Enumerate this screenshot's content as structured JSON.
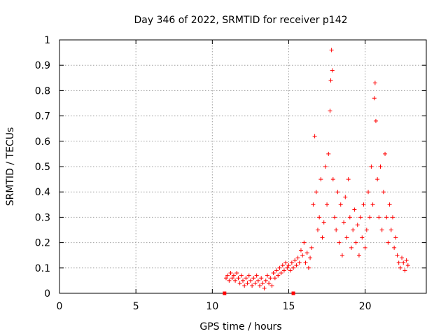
{
  "chart_data": {
    "type": "scatter",
    "title": "Day 346 of 2022, SRMTID for receiver p142",
    "xlabel": "GPS time / hours",
    "ylabel": "SRMTID / TECUs",
    "xlim": [
      0,
      24
    ],
    "ylim": [
      0,
      1
    ],
    "xticks": [
      0,
      5,
      10,
      15,
      20
    ],
    "xtick_labels": [
      "0",
      "5",
      "10",
      "15",
      "20"
    ],
    "yticks": [
      0,
      0.1,
      0.2,
      0.3,
      0.4,
      0.5,
      0.6,
      0.7,
      0.8,
      0.9,
      1
    ],
    "ytick_labels": [
      "0",
      "0.1",
      "0.2",
      "0.3",
      "0.4",
      "0.5",
      "0.6",
      "0.7",
      "0.8",
      "0.9",
      "1"
    ],
    "grid": true,
    "marker": "+",
    "marker_color": "#ff0000",
    "series": [
      {
        "name": "SRMTID",
        "points": [
          [
            10.8,
            0
          ],
          [
            15.3,
            0
          ],
          [
            10.9,
            0.06
          ],
          [
            11.0,
            0.07
          ],
          [
            11.1,
            0.05
          ],
          [
            11.2,
            0.08
          ],
          [
            11.3,
            0.06
          ],
          [
            11.4,
            0.07
          ],
          [
            11.5,
            0.05
          ],
          [
            11.6,
            0.08
          ],
          [
            11.7,
            0.06
          ],
          [
            11.8,
            0.04
          ],
          [
            11.9,
            0.07
          ],
          [
            12.0,
            0.05
          ],
          [
            12.1,
            0.03
          ],
          [
            12.2,
            0.06
          ],
          [
            12.3,
            0.04
          ],
          [
            12.4,
            0.07
          ],
          [
            12.5,
            0.05
          ],
          [
            12.6,
            0.03
          ],
          [
            12.7,
            0.06
          ],
          [
            12.8,
            0.04
          ],
          [
            12.9,
            0.07
          ],
          [
            13.0,
            0.05
          ],
          [
            13.1,
            0.03
          ],
          [
            13.2,
            0.06
          ],
          [
            13.3,
            0.04
          ],
          [
            13.4,
            0.02
          ],
          [
            13.5,
            0.05
          ],
          [
            13.6,
            0.07
          ],
          [
            13.7,
            0.04
          ],
          [
            13.8,
            0.06
          ],
          [
            13.9,
            0.03
          ],
          [
            14.0,
            0.08
          ],
          [
            14.1,
            0.06
          ],
          [
            14.2,
            0.09
          ],
          [
            14.3,
            0.07
          ],
          [
            14.4,
            0.1
          ],
          [
            14.5,
            0.08
          ],
          [
            14.6,
            0.11
          ],
          [
            14.7,
            0.09
          ],
          [
            14.8,
            0.12
          ],
          [
            14.9,
            0.1
          ],
          [
            15.0,
            0.11
          ],
          [
            15.1,
            0.09
          ],
          [
            15.2,
            0.12
          ],
          [
            15.3,
            0.1
          ],
          [
            15.4,
            0.13
          ],
          [
            15.5,
            0.11
          ],
          [
            15.6,
            0.14
          ],
          [
            15.7,
            0.12
          ],
          [
            15.8,
            0.17
          ],
          [
            15.9,
            0.15
          ],
          [
            16.0,
            0.2
          ],
          [
            16.1,
            0.12
          ],
          [
            16.2,
            0.16
          ],
          [
            16.3,
            0.1
          ],
          [
            16.4,
            0.14
          ],
          [
            16.5,
            0.18
          ],
          [
            16.6,
            0.35
          ],
          [
            16.7,
            0.62
          ],
          [
            16.8,
            0.4
          ],
          [
            16.9,
            0.25
          ],
          [
            17.0,
            0.3
          ],
          [
            17.1,
            0.45
          ],
          [
            17.2,
            0.22
          ],
          [
            17.3,
            0.28
          ],
          [
            17.4,
            0.5
          ],
          [
            17.5,
            0.35
          ],
          [
            17.6,
            0.55
          ],
          [
            17.7,
            0.72
          ],
          [
            17.75,
            0.84
          ],
          [
            17.8,
            0.96
          ],
          [
            17.85,
            0.88
          ],
          [
            17.9,
            0.45
          ],
          [
            18.0,
            0.3
          ],
          [
            18.1,
            0.25
          ],
          [
            18.2,
            0.4
          ],
          [
            18.3,
            0.2
          ],
          [
            18.4,
            0.35
          ],
          [
            18.5,
            0.15
          ],
          [
            18.6,
            0.28
          ],
          [
            18.7,
            0.38
          ],
          [
            18.8,
            0.22
          ],
          [
            18.9,
            0.45
          ],
          [
            19.0,
            0.3
          ],
          [
            19.1,
            0.18
          ],
          [
            19.2,
            0.25
          ],
          [
            19.3,
            0.33
          ],
          [
            19.4,
            0.2
          ],
          [
            19.5,
            0.27
          ],
          [
            19.6,
            0.15
          ],
          [
            19.7,
            0.3
          ],
          [
            19.8,
            0.22
          ],
          [
            19.9,
            0.35
          ],
          [
            20.0,
            0.18
          ],
          [
            20.1,
            0.25
          ],
          [
            20.2,
            0.4
          ],
          [
            20.3,
            0.3
          ],
          [
            20.4,
            0.5
          ],
          [
            20.5,
            0.35
          ],
          [
            20.6,
            0.77
          ],
          [
            20.65,
            0.83
          ],
          [
            20.7,
            0.68
          ],
          [
            20.8,
            0.45
          ],
          [
            20.9,
            0.3
          ],
          [
            21.0,
            0.5
          ],
          [
            21.1,
            0.25
          ],
          [
            21.2,
            0.4
          ],
          [
            21.3,
            0.55
          ],
          [
            21.4,
            0.3
          ],
          [
            21.5,
            0.2
          ],
          [
            21.6,
            0.35
          ],
          [
            21.7,
            0.25
          ],
          [
            21.8,
            0.3
          ],
          [
            21.9,
            0.18
          ],
          [
            22.0,
            0.22
          ],
          [
            22.1,
            0.15
          ],
          [
            22.2,
            0.12
          ],
          [
            22.3,
            0.1
          ],
          [
            22.4,
            0.14
          ],
          [
            22.5,
            0.12
          ],
          [
            22.6,
            0.09
          ],
          [
            22.7,
            0.13
          ],
          [
            22.8,
            0.11
          ]
        ]
      }
    ]
  }
}
